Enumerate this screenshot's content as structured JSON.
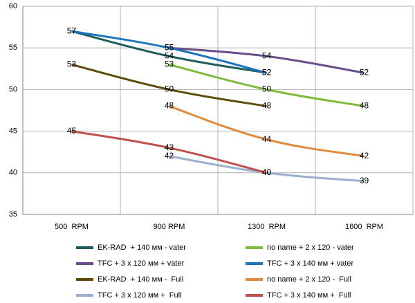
{
  "chart_data": {
    "type": "line",
    "categories": [
      "500  RPM",
      "900 RPM",
      "1300  RPM",
      "1600  RPM"
    ],
    "ylim": [
      35,
      60
    ],
    "yticks": [
      35,
      40,
      45,
      50,
      55,
      60
    ],
    "grid": true,
    "legend": "bottom",
    "series": [
      {
        "name": "EK-RAD  + 140 мм - vater",
        "color": "#1f5e5a",
        "values": [
          57,
          54,
          52,
          null
        ]
      },
      {
        "name": "no name + 2 x 120 - vater",
        "color": "#7fba3d",
        "values": [
          null,
          53,
          50,
          48
        ]
      },
      {
        "name": "TFC + 3 x 120 мм + vater",
        "color": "#6a4c8c",
        "values": [
          null,
          55,
          54,
          52
        ]
      },
      {
        "name": "TFC + 3 x 140 мм + vater",
        "color": "#1a74c0",
        "values": [
          57,
          55,
          52,
          null
        ]
      },
      {
        "name": "EK-RAD  + 140 мм -  Fuii",
        "color": "#5e4a0a",
        "values": [
          53,
          50,
          48,
          null
        ]
      },
      {
        "name": "no name + 2 x 120 -  Full",
        "color": "#e08a3c",
        "values": [
          null,
          48,
          44,
          42
        ]
      },
      {
        "name": "TFC + 3 x 120 мм +  Full",
        "color": "#9ab0d0",
        "values": [
          null,
          42,
          40,
          39
        ]
      },
      {
        "name": "TFC + 3 x 140 мм +  Full",
        "color": "#c0504d",
        "values": [
          45,
          43,
          40,
          null
        ]
      }
    ]
  }
}
